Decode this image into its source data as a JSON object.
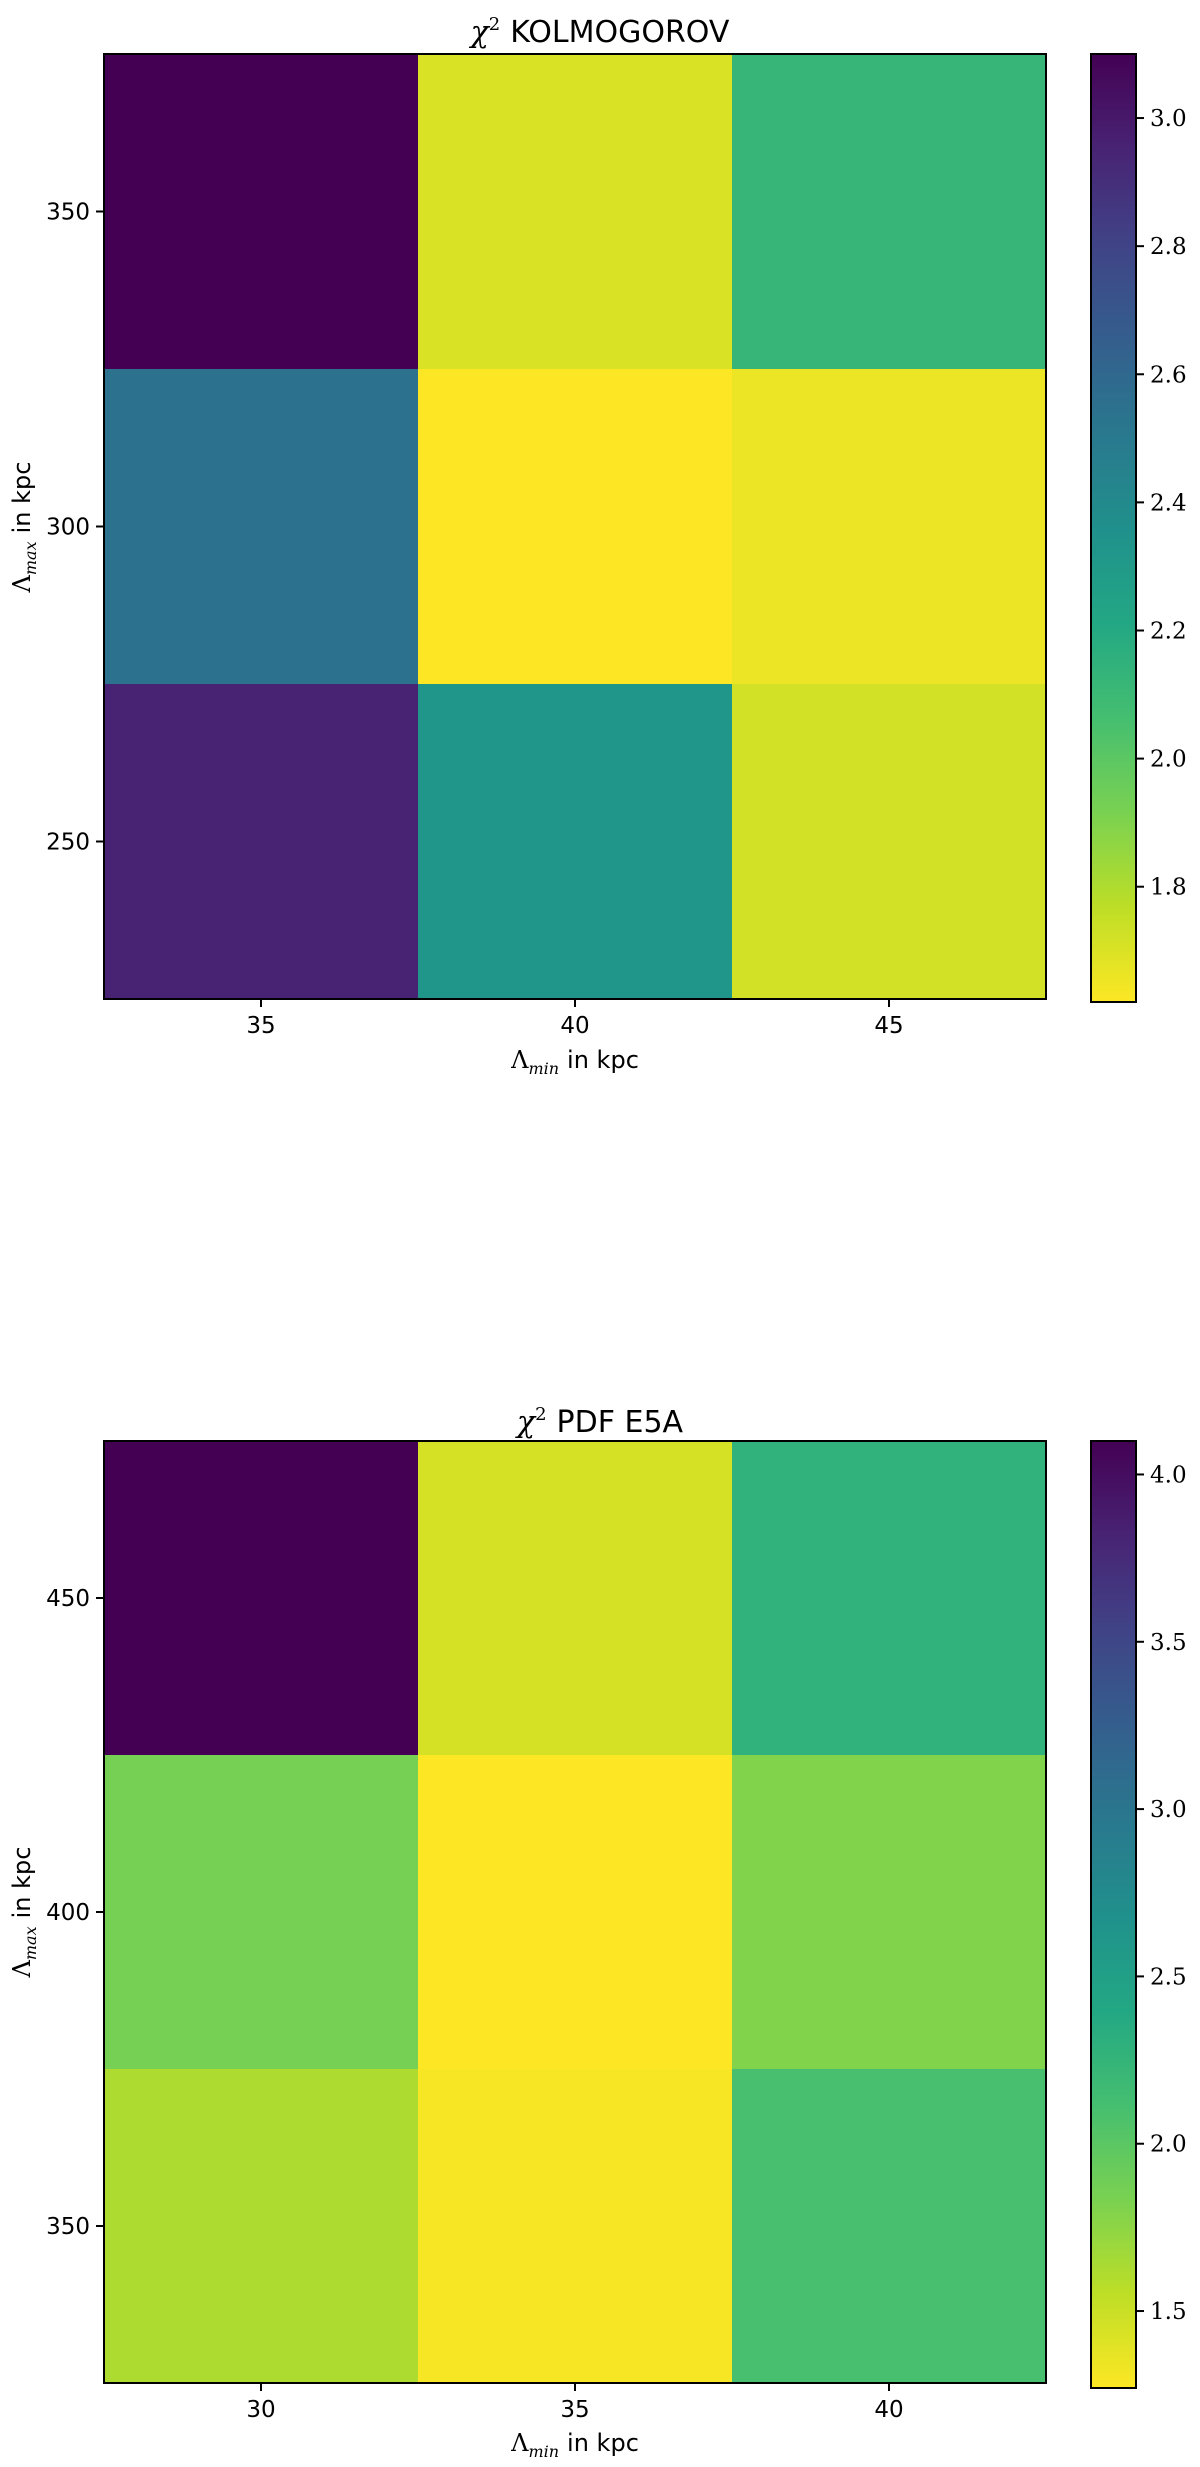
{
  "chart_data": [
    {
      "type": "heatmap",
      "title_symbol": "χ",
      "title_superscript": "2",
      "title_text": "KOLMOGOROV",
      "xlabel_symbol": "Λ",
      "xlabel_sub": "min",
      "xlabel_text": "in kpc",
      "ylabel_symbol": "Λ",
      "ylabel_sub": "max",
      "ylabel_text": "in kpc",
      "x": [
        35,
        40,
        45
      ],
      "y": [
        350,
        300,
        250
      ],
      "values": [
        [
          3.1,
          1.7,
          2.12
        ],
        [
          2.55,
          1.62,
          1.66
        ],
        [
          2.95,
          2.33,
          1.72
        ]
      ],
      "colormap": "viridis_r",
      "colorbar": {
        "vmin": 1.62,
        "vmax": 3.1,
        "ticks": [
          3.0,
          2.8,
          2.6,
          2.4,
          2.2,
          2.0,
          1.8
        ]
      },
      "grid": false
    },
    {
      "type": "heatmap",
      "title_symbol": "χ",
      "title_superscript": "2",
      "title_text": "PDF E5A",
      "xlabel_symbol": "Λ",
      "xlabel_sub": "min",
      "xlabel_text": "in kpc",
      "ylabel_symbol": "Λ",
      "ylabel_sub": "max",
      "ylabel_text": "in kpc",
      "x": [
        30,
        35,
        40
      ],
      "y": [
        450,
        400,
        350
      ],
      "values": [
        [
          4.1,
          1.45,
          2.28
        ],
        [
          1.85,
          1.27,
          1.8
        ],
        [
          1.62,
          1.3,
          2.1
        ]
      ],
      "colormap": "viridis_r",
      "colorbar": {
        "vmin": 1.27,
        "vmax": 4.1,
        "ticks": [
          4.0,
          3.5,
          3.0,
          2.5,
          2.0,
          1.5
        ]
      },
      "grid": false
    }
  ]
}
